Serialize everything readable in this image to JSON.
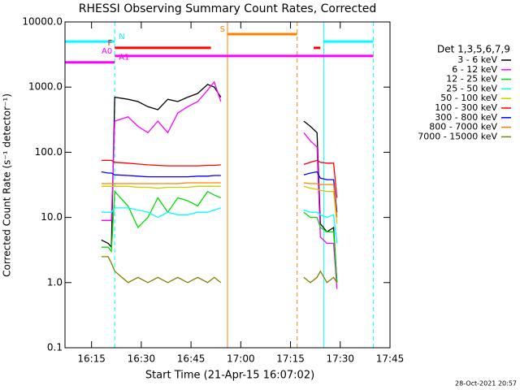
{
  "chart_data": {
    "type": "line",
    "title": "RHESSI Observing Summary Count Rates, Corrected",
    "x_label": "Start Time (21-Apr-15 16:07:02)",
    "y_label": "Corrected Count Rate (s⁻¹ detector⁻¹)",
    "footer": "28-Oct-2021 20:57",
    "legend_title": "Det 1,3,5,6,7,9",
    "legend_position": "right",
    "log_y": true,
    "xlim": [
      "16:07",
      "17:45"
    ],
    "xticks": [
      "16:15",
      "16:30",
      "16:45",
      "17:00",
      "17:15",
      "17:30",
      "17:45"
    ],
    "ylim": [
      0.1,
      10000
    ],
    "yticks": [
      {
        "value": 10000,
        "label": "10000.0"
      },
      {
        "value": 1000,
        "label": "1000.0"
      },
      {
        "value": 100,
        "label": "100.0"
      },
      {
        "value": 10,
        "label": "10.0"
      },
      {
        "value": 1,
        "label": "1.0"
      },
      {
        "value": 0.1,
        "label": "0.1"
      }
    ],
    "x": [
      "16:18",
      "16:20",
      "16:21",
      "16:22",
      "16:26",
      "16:29",
      "16:32",
      "16:35",
      "16:38",
      "16:41",
      "16:44",
      "16:47",
      "16:50",
      "16:52",
      "16:54",
      "17:06",
      "17:19",
      "17:21",
      "17:23",
      "17:24",
      "17:26",
      "17:28",
      "17:29"
    ],
    "series": [
      {
        "name": "3 - 6 keV",
        "color": "#000000",
        "values": [
          4.5,
          4,
          3.5,
          700,
          650,
          600,
          500,
          450,
          650,
          600,
          700,
          800,
          1100,
          1000,
          700,
          null,
          300,
          250,
          200,
          8,
          6,
          7,
          1
        ]
      },
      {
        "name": "6 - 12 keV",
        "color": "#ff00ff",
        "values": [
          9,
          9,
          9,
          300,
          350,
          250,
          200,
          300,
          200,
          400,
          500,
          600,
          900,
          1200,
          600,
          null,
          200,
          150,
          120,
          5,
          4,
          4,
          0.8
        ]
      },
      {
        "name": "12 - 25 keV",
        "color": "#00dd00",
        "values": [
          3.5,
          3.5,
          3,
          25,
          15,
          7,
          10,
          20,
          12,
          20,
          18,
          15,
          25,
          22,
          20,
          null,
          12,
          10,
          10,
          7,
          6,
          6,
          1
        ]
      },
      {
        "name": "25 - 50 keV",
        "color": "#00ffff",
        "values": [
          12,
          12,
          12,
          14,
          14,
          13,
          12,
          10,
          12,
          11,
          11,
          12,
          12,
          13,
          14,
          null,
          13,
          12,
          12,
          11,
          10,
          11,
          4
        ]
      },
      {
        "name": "50 - 100 keV",
        "color": "#cccc00",
        "values": [
          30,
          30,
          30,
          30,
          30,
          29,
          29,
          28,
          29,
          29,
          29,
          30,
          30,
          30,
          30,
          null,
          30,
          28,
          27,
          26,
          25,
          25,
          8
        ]
      },
      {
        "name": "100 - 300 keV",
        "color": "#ff0000",
        "values": [
          75,
          75,
          75,
          70,
          68,
          66,
          64,
          63,
          62,
          62,
          62,
          62,
          63,
          63,
          64,
          null,
          65,
          70,
          75,
          70,
          68,
          68,
          20
        ]
      },
      {
        "name": "300 - 800 keV",
        "color": "#0000ff",
        "values": [
          50,
          48,
          48,
          45,
          44,
          43,
          42,
          42,
          42,
          42,
          42,
          43,
          43,
          44,
          44,
          null,
          45,
          48,
          50,
          40,
          38,
          38,
          12
        ]
      },
      {
        "name": "800 - 7000 keV",
        "color": "#ff8000",
        "values": [
          33,
          33,
          33,
          33,
          33,
          33,
          33,
          33,
          33,
          33,
          34,
          34,
          34,
          34,
          34,
          null,
          34,
          33,
          33,
          32,
          32,
          32,
          10
        ]
      },
      {
        "name": "7000 - 15000 keV",
        "color": "#808000",
        "values": [
          2.5,
          2.5,
          2,
          1.5,
          1,
          1.2,
          1,
          1.2,
          1,
          1.2,
          1,
          1.2,
          1,
          1.2,
          1,
          null,
          1.2,
          1,
          1.2,
          1.5,
          1,
          1.2,
          1
        ]
      }
    ],
    "flags": [
      {
        "label": "N",
        "color": "#00ffff",
        "level": 5000,
        "label_side": "after",
        "spans": [
          [
            "16:07",
            "16:22"
          ],
          [
            "17:25",
            "17:40"
          ]
        ]
      },
      {
        "label": "S",
        "color": "#ff8000",
        "level": 6500,
        "label_side": "before",
        "spans": [
          [
            "16:56",
            "17:17"
          ]
        ]
      },
      {
        "label": "F",
        "color": "#ff0000",
        "level": 4000,
        "label_side": "before",
        "spans": [
          [
            "16:22",
            "16:51"
          ],
          [
            "17:22",
            "17:24"
          ]
        ]
      },
      {
        "label": "A0",
        "color": "#ff00ff",
        "level": 3000,
        "label_side": "before",
        "spans": [
          [
            "16:22",
            "17:40"
          ]
        ]
      },
      {
        "label": "A1",
        "color": "#ff00ff",
        "level": 2400,
        "label_side": "after",
        "spans": [
          [
            "16:07",
            "16:22"
          ]
        ]
      }
    ],
    "vlines": [
      {
        "x": "16:07",
        "color": "#00ffff",
        "dashed": false
      },
      {
        "x": "16:22",
        "color": "#00ffff",
        "dashed": true
      },
      {
        "x": "16:56",
        "color": "#ff8000",
        "dashed": false
      },
      {
        "x": "17:17",
        "color": "#ff8000",
        "dashed": true
      },
      {
        "x": "17:25",
        "color": "#00ffff",
        "dashed": false
      },
      {
        "x": "17:40",
        "color": "#00ffff",
        "dashed": true
      }
    ]
  }
}
